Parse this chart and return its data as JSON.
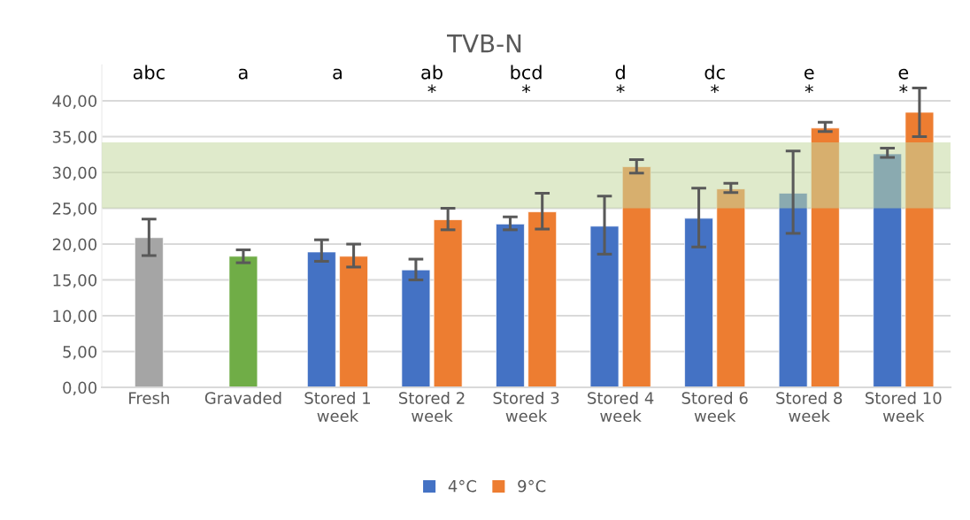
{
  "chart_data": {
    "type": "bar",
    "title": "TVB-N",
    "categories": [
      "Fresh",
      "Gravaded",
      "Stored 1\nweek",
      "Stored 2\nweek",
      "Stored 3\nweek",
      "Stored 4\nweek",
      "Stored 6\nweek",
      "Stored 8\nweek",
      "Stored 10\nweek"
    ],
    "series": [
      {
        "colors": [
          "#a5a5a5",
          "#70ad47",
          null,
          null,
          null,
          null,
          null,
          null,
          null
        ],
        "values": [
          20.9,
          18.3,
          null,
          null,
          null,
          null,
          null,
          null,
          null
        ],
        "errors": [
          [
            18.4,
            23.5
          ],
          [
            17.4,
            19.2
          ],
          null,
          null,
          null,
          null,
          null,
          null,
          null
        ]
      },
      {
        "name": "4°C",
        "color": "#4472c4",
        "values": [
          null,
          null,
          18.9,
          16.4,
          22.8,
          22.5,
          23.6,
          27.1,
          32.6
        ],
        "errors": [
          null,
          null,
          [
            17.6,
            20.6
          ],
          [
            15.0,
            17.9
          ],
          [
            22.0,
            23.8
          ],
          [
            18.6,
            26.7
          ],
          [
            19.6,
            27.8
          ],
          [
            21.5,
            33.0
          ],
          [
            32.1,
            33.4
          ]
        ]
      },
      {
        "name": "9°C",
        "color": "#ed7d31",
        "values": [
          null,
          null,
          18.3,
          23.4,
          24.5,
          30.8,
          27.7,
          36.2,
          38.4
        ],
        "errors": [
          null,
          null,
          [
            16.8,
            20.0
          ],
          [
            22.0,
            25.0
          ],
          [
            22.1,
            27.1
          ],
          [
            29.9,
            31.8
          ],
          [
            27.2,
            28.5
          ],
          [
            35.7,
            37.0
          ],
          [
            35.0,
            41.8
          ]
        ]
      }
    ],
    "ylim": [
      0,
      45
    ],
    "yticks": [
      {
        "value": 0,
        "label": "0,00"
      },
      {
        "value": 5,
        "label": "5,00"
      },
      {
        "value": 10,
        "label": "10,00"
      },
      {
        "value": 15,
        "label": "15,00"
      },
      {
        "value": 20,
        "label": "20,00"
      },
      {
        "value": 25,
        "label": "25,00"
      },
      {
        "value": 30,
        "label": "30,00"
      },
      {
        "value": 35,
        "label": "35,00"
      },
      {
        "value": 40,
        "label": "40,00"
      }
    ],
    "bands": [
      {
        "axis": "y",
        "from": 25,
        "to": 34.2,
        "color": "#c5d9a0"
      }
    ],
    "annotations": [
      "abc",
      "a",
      "a",
      "ab\n*",
      "bcd\n*",
      "d\n*",
      "dc\n*",
      "e\n*",
      "e\n*"
    ],
    "grid": "y",
    "legend": "bottom"
  }
}
